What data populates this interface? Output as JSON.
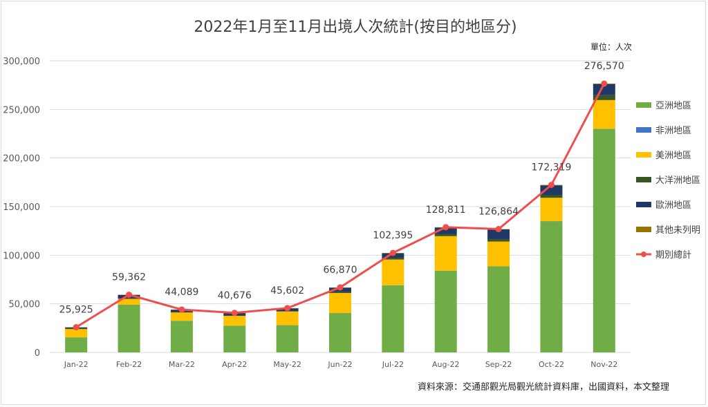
{
  "chart_data": {
    "type": "bar",
    "stacked": true,
    "title": "2022年1月至11月出境人次統計(按目的地區分)",
    "unit_note": "單位：人次",
    "source": "資料來源：交通部觀光局觀光統計資料庫，出國資料，本文整理",
    "categories": [
      "Jan-22",
      "Feb-22",
      "Mar-22",
      "Apr-22",
      "May-22",
      "Jun-22",
      "Jul-22",
      "Aug-22",
      "Sep-22",
      "Oct-22",
      "Nov-22"
    ],
    "ylim": [
      0,
      300000
    ],
    "yticks": [
      0,
      50000,
      100000,
      150000,
      200000,
      250000,
      300000
    ],
    "ytick_labels": [
      "0",
      "50,000",
      "100,000",
      "150,000",
      "200,000",
      "250,000",
      "300,000"
    ],
    "grid": true,
    "legend_position": "right",
    "series": [
      {
        "name": "亞洲地區",
        "color": "#70ad47",
        "values": [
          15500,
          49000,
          32500,
          27500,
          28000,
          40500,
          69000,
          84000,
          88500,
          135000,
          230000
        ]
      },
      {
        "name": "非洲地區",
        "color": "#4472c4",
        "values": [
          50,
          50,
          50,
          50,
          50,
          100,
          100,
          100,
          100,
          100,
          100
        ]
      },
      {
        "name": "美洲地區",
        "color": "#ffc000",
        "values": [
          8500,
          6000,
          8500,
          10000,
          14000,
          20500,
          26500,
          35500,
          25500,
          24000,
          29500
        ]
      },
      {
        "name": "大洋洲地區",
        "color": "#375623",
        "values": [
          500,
          500,
          500,
          500,
          500,
          1000,
          1500,
          2000,
          2000,
          3000,
          5000
        ]
      },
      {
        "name": "歐洲地區",
        "color": "#203864",
        "values": [
          1000,
          3500,
          2200,
          2400,
          2800,
          4500,
          4800,
          6800,
          10500,
          9800,
          11500
        ]
      },
      {
        "name": "其他未列明",
        "color": "#997300",
        "values": [
          375,
          312,
          339,
          226,
          252,
          270,
          495,
          411,
          264,
          419,
          470
        ]
      }
    ],
    "total_series": {
      "name": "期別總計",
      "color": "#ee4e4e",
      "values": [
        25925,
        59362,
        44089,
        40676,
        45602,
        66870,
        102395,
        128811,
        126864,
        172319,
        276570
      ],
      "labels": [
        "25,925",
        "59,362",
        "44,089",
        "40,676",
        "45,602",
        "66,870",
        "102,395",
        "128,811",
        "126,864",
        "172,319",
        "276,570"
      ]
    }
  }
}
